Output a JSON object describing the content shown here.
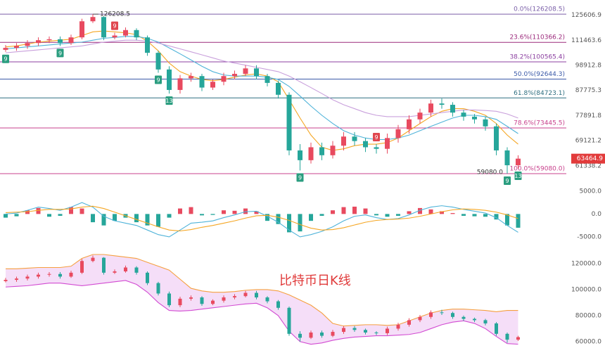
{
  "chart_data": [
    {
      "type": "candlestick",
      "log_scale": true,
      "ylim": [
        56200,
        135000
      ],
      "yticks": [
        125606.9,
        111463.6,
        98912.8,
        87775.3,
        77891.8,
        69121.2,
        61338.2
      ],
      "up_color": "#e84a5f",
      "down_color": "#26a69a",
      "open": [
        106500,
        107500,
        108500,
        110000,
        111500,
        112000,
        110000,
        113000,
        122000,
        124500,
        113000,
        114000,
        117000,
        113000,
        105000,
        97000,
        88000,
        93000,
        94000,
        89000,
        91500,
        94000,
        95000,
        97500,
        94000,
        91000,
        86000,
        66000,
        63000,
        67000,
        64500,
        67500,
        70500,
        69000,
        67000,
        66500,
        70000,
        73000,
        76500,
        79000,
        82500,
        82000,
        79000,
        77500,
        76500,
        74000,
        66000,
        61500
      ],
      "high": [
        109000,
        110000,
        111500,
        113000,
        113500,
        113500,
        114500,
        123500,
        126208.5,
        125000,
        115500,
        118500,
        118000,
        114000,
        106000,
        98500,
        94500,
        95500,
        95000,
        92500,
        95500,
        96500,
        99000,
        99000,
        95000,
        92000,
        87000,
        68000,
        68500,
        68500,
        69000,
        72000,
        72000,
        70000,
        68000,
        71500,
        74500,
        78000,
        80500,
        84000,
        84500,
        83000,
        80000,
        78500,
        77500,
        75000,
        67000,
        64500
      ],
      "low": [
        105500,
        106000,
        107000,
        108500,
        110000,
        108500,
        109000,
        112000,
        121000,
        111500,
        112000,
        113000,
        111500,
        103500,
        95500,
        86500,
        86500,
        91500,
        87500,
        88000,
        90000,
        92500,
        94000,
        92500,
        89500,
        84500,
        64500,
        60000,
        62000,
        63000,
        63500,
        66000,
        67500,
        65500,
        65000,
        65000,
        68500,
        71500,
        75000,
        77500,
        80500,
        77500,
        76000,
        75000,
        72500,
        64500,
        59080,
        60500
      ],
      "close": [
        107500,
        108500,
        110000,
        111500,
        112000,
        110000,
        113000,
        122000,
        124500,
        113000,
        114000,
        117000,
        113000,
        105000,
        97000,
        88000,
        93000,
        94000,
        89000,
        91500,
        94000,
        95000,
        97500,
        94000,
        91000,
        86000,
        66000,
        63000,
        67000,
        64500,
        67500,
        70500,
        69000,
        67000,
        66500,
        70000,
        73000,
        76500,
        79000,
        82500,
        82000,
        79000,
        77500,
        76500,
        74000,
        66000,
        61500,
        63464.9
      ],
      "series": [
        {
          "color": "#f5a623",
          "values": [
            108000,
            108500,
            109500,
            110500,
            111000,
            111500,
            112000,
            114000,
            116000,
            116500,
            116000,
            115500,
            114500,
            111000,
            106000,
            100000,
            96000,
            94000,
            92500,
            92000,
            92500,
            93500,
            94500,
            95000,
            94000,
            91500,
            84000,
            77000,
            71000,
            67000,
            66000,
            66500,
            67500,
            68000,
            68000,
            68500,
            70000,
            72500,
            75000,
            77500,
            79500,
            80500,
            80500,
            79500,
            78000,
            75000,
            71000,
            68000
          ]
        },
        {
          "color": "#4fb3d9",
          "values": [
            107000,
            107500,
            108000,
            108500,
            109000,
            109500,
            110000,
            110500,
            111500,
            112500,
            113000,
            113500,
            113500,
            112500,
            110500,
            107500,
            104500,
            101500,
            98500,
            96000,
            94500,
            94000,
            94000,
            94000,
            93500,
            92500,
            89500,
            85500,
            81500,
            78000,
            75000,
            72500,
            71000,
            70000,
            69500,
            69500,
            70000,
            71000,
            72500,
            74000,
            75500,
            77000,
            78000,
            78000,
            77500,
            76500,
            74000,
            71500
          ]
        },
        {
          "color": "#c9a0dc",
          "values": [
            105000,
            105500,
            106000,
            106500,
            107000,
            107500,
            108000,
            108500,
            109500,
            110500,
            111000,
            111500,
            111500,
            111000,
            110000,
            108500,
            107000,
            105500,
            104000,
            102500,
            101000,
            100000,
            99000,
            98000,
            97000,
            96000,
            94000,
            91500,
            89000,
            86500,
            84000,
            82000,
            80500,
            79000,
            78000,
            77500,
            77500,
            77500,
            78000,
            78500,
            79000,
            79500,
            80000,
            80000,
            79800,
            79500,
            78500,
            77000
          ]
        }
      ],
      "fib_levels": [
        {
          "value": 126208.5,
          "label": "0.0%(126208.5)",
          "color": "#7a5ea8"
        },
        {
          "value": 110366.2,
          "label": "23.6%(110366.2)",
          "color": "#9c2a7c"
        },
        {
          "value": 100565.4,
          "label": "38.2%(100565.4)",
          "color": "#8b3fa0"
        },
        {
          "value": 92644.3,
          "label": "50.0%(92644.3)",
          "color": "#3b5aa8"
        },
        {
          "value": 84723.1,
          "label": "61.8%(84723.1)",
          "color": "#2f6f80"
        },
        {
          "value": 73445.5,
          "label": "78.6%(73445.5)",
          "color": "#c8418c"
        },
        {
          "value": 59080,
          "label": "100.0%(59080.0)",
          "color": "#c8418c"
        }
      ],
      "high_label": "126208.5",
      "low_label": "59080.0",
      "sell_color": "#e0474f",
      "buy_color": "#2a9d7f",
      "td_sell": [
        null,
        null,
        null,
        null,
        null,
        null,
        null,
        null,
        null,
        null,
        "9",
        null,
        null,
        null,
        null,
        null,
        null,
        null,
        null,
        null,
        null,
        null,
        null,
        null,
        null,
        null,
        null,
        null,
        null,
        null,
        null,
        null,
        null,
        null,
        "9",
        null,
        null,
        null,
        null,
        null,
        null,
        null,
        null,
        null,
        null,
        null,
        null,
        null
      ],
      "td_buy": [
        "9",
        null,
        null,
        null,
        null,
        "9",
        null,
        null,
        null,
        null,
        null,
        null,
        null,
        null,
        "9",
        "13",
        null,
        null,
        null,
        null,
        null,
        null,
        null,
        null,
        null,
        null,
        null,
        "9",
        null,
        null,
        null,
        null,
        null,
        null,
        null,
        null,
        null,
        null,
        null,
        null,
        null,
        null,
        null,
        null,
        null,
        null,
        "9",
        "13"
      ]
    },
    {
      "type": "macd",
      "ylim": [
        -7000,
        6500
      ],
      "yticks": [
        {
          "value": 5000,
          "label": "5000.0"
        },
        {
          "value": 0,
          "label": "0.0"
        },
        {
          "value": -5000,
          "label": "-5000.0"
        }
      ],
      "up_color": "#e84a5f",
      "down_color": "#26a69a",
      "values": [
        -800,
        -500,
        800,
        1300,
        -600,
        -400,
        1500,
        1200,
        -1800,
        -2500,
        -1500,
        -800,
        -1800,
        -2500,
        -2800,
        -800,
        1200,
        1500,
        -300,
        -200,
        800,
        700,
        1200,
        600,
        -1500,
        -2200,
        -4000,
        -3800,
        -1500,
        -400,
        800,
        1500,
        1600,
        1200,
        -300,
        -600,
        -400,
        600,
        1300,
        1000,
        600,
        200,
        -400,
        -500,
        -600,
        -1200,
        -2500,
        -3000
      ],
      "series": [
        {
          "color": "#4fb3d9",
          "values": [
            0,
            200,
            800,
            1500,
            1200,
            800,
            1500,
            2500,
            1500,
            -500,
            -1500,
            -2000,
            -2500,
            -3500,
            -4500,
            -5000,
            -3500,
            -2000,
            -1800,
            -1500,
            -800,
            -200,
            500,
            600,
            -500,
            -1800,
            -3500,
            -5000,
            -4500,
            -3800,
            -2800,
            -1500,
            -500,
            -200,
            -800,
            -1200,
            -1000,
            -200,
            800,
            1500,
            1800,
            1500,
            1000,
            600,
            200,
            -800,
            -2500,
            -4000
          ]
        },
        {
          "color": "#f5a623",
          "values": [
            300,
            400,
            500,
            800,
            1000,
            1000,
            1100,
            1500,
            1700,
            1200,
            400,
            -400,
            -1200,
            -2000,
            -2800,
            -3500,
            -3700,
            -3400,
            -2900,
            -2500,
            -2000,
            -1500,
            -900,
            -400,
            -300,
            -700,
            -1400,
            -2300,
            -3100,
            -3500,
            -3400,
            -3000,
            -2400,
            -1800,
            -1400,
            -1200,
            -1100,
            -900,
            -500,
            0,
            500,
            900,
            1100,
            1000,
            800,
            400,
            -200,
            -1000
          ]
        }
      ]
    },
    {
      "type": "bollinger",
      "title": "比特币日K线",
      "ylim": [
        55100,
        132400
      ],
      "yticks": [
        {
          "value": 120000,
          "label": "120000.0"
        },
        {
          "value": 100000,
          "label": "100000.0"
        },
        {
          "value": 80000,
          "label": "80000.0"
        },
        {
          "value": 60000,
          "label": "60000.0"
        }
      ],
      "fill_color": "#f3d6f6",
      "series": [
        {
          "color": "#f5a040",
          "values": [
            116000,
            116000,
            116500,
            117000,
            117000,
            117000,
            118000,
            124000,
            127000,
            127000,
            126000,
            125000,
            124000,
            121000,
            118000,
            115000,
            108000,
            101000,
            99000,
            98000,
            98000,
            98500,
            99500,
            100000,
            100000,
            99000,
            96000,
            92000,
            88000,
            82000,
            74000,
            72000,
            72500,
            73000,
            73000,
            72500,
            73000,
            76000,
            79000,
            82000,
            84000,
            85000,
            85000,
            84500,
            84000,
            83000,
            84000,
            84000
          ]
        },
        {
          "color": "#d24bd2",
          "values": [
            102000,
            102500,
            103000,
            104000,
            105000,
            105000,
            104000,
            103000,
            104000,
            105000,
            106000,
            107000,
            104000,
            98000,
            90000,
            84000,
            83500,
            84000,
            85000,
            86000,
            87000,
            88000,
            89000,
            89500,
            86000,
            80000,
            68000,
            60000,
            58000,
            59000,
            61000,
            62500,
            63500,
            64000,
            64500,
            64500,
            65000,
            65500,
            67000,
            70000,
            73000,
            75000,
            76000,
            74000,
            70000,
            64000,
            58500,
            58000
          ]
        }
      ]
    }
  ]
}
